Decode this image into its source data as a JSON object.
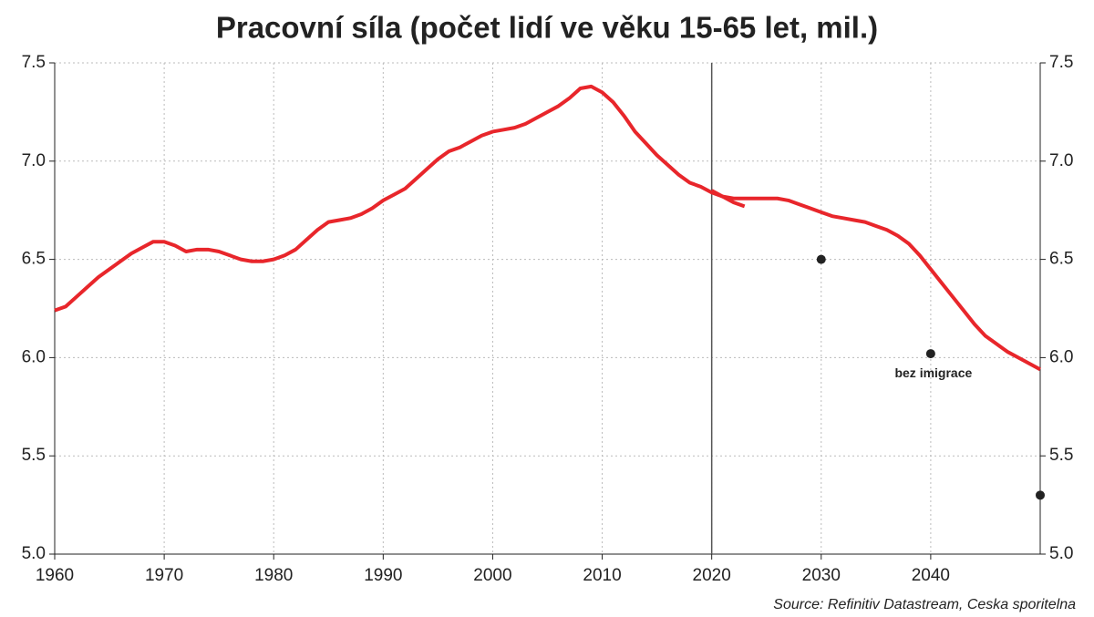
{
  "chart_data": {
    "type": "line",
    "title": "Pracovní síla (počet lidí ve věku 15-65 let, mil.)",
    "source": "Source: Refinitiv Datastream, Ceska sporitelna",
    "xlim": [
      1960,
      2050
    ],
    "xticks": [
      1960,
      1970,
      1980,
      1990,
      2000,
      2010,
      2020,
      2030,
      2040
    ],
    "ylim": [
      5,
      7.5
    ],
    "yticks": [
      {
        "value": 5,
        "label": "5.0"
      },
      {
        "value": 5.5,
        "label": "5.5"
      },
      {
        "value": 6,
        "label": "6.0"
      },
      {
        "value": 6.5,
        "label": "6.5"
      },
      {
        "value": 7,
        "label": "7.0"
      },
      {
        "value": 7.5,
        "label": "7.5"
      }
    ],
    "y2lim": [
      5,
      7.5
    ],
    "y2ticks": [
      {
        "value": 5,
        "label": "5.0"
      },
      {
        "value": 5.5,
        "label": "5.5"
      },
      {
        "value": 6,
        "label": "6.0"
      },
      {
        "value": 6.5,
        "label": "6.5"
      },
      {
        "value": 7,
        "label": "7.0"
      },
      {
        "value": 7.5,
        "label": "7.5"
      }
    ],
    "grid": true,
    "vline": 2020,
    "series": [
      {
        "color": "#e8262b",
        "x": [
          1960,
          1961,
          1962,
          1963,
          1964,
          1965,
          1966,
          1967,
          1968,
          1969,
          1970,
          1971,
          1972,
          1973,
          1974,
          1975,
          1976,
          1977,
          1978,
          1979,
          1980,
          1981,
          1982,
          1983,
          1984,
          1985,
          1986,
          1987,
          1988,
          1989,
          1990,
          1991,
          1992,
          1993,
          1994,
          1995,
          1996,
          1997,
          1998,
          1999,
          2000,
          2001,
          2002,
          2003,
          2004,
          2005,
          2006,
          2007,
          2008,
          2009,
          2010,
          2011,
          2012,
          2013,
          2014,
          2015,
          2016,
          2017,
          2018,
          2019,
          2020,
          2021,
          2022,
          2023
        ],
        "values": [
          6.24,
          6.26,
          6.31,
          6.36,
          6.41,
          6.45,
          6.49,
          6.53,
          6.56,
          6.59,
          6.59,
          6.57,
          6.54,
          6.55,
          6.55,
          6.54,
          6.52,
          6.5,
          6.49,
          6.49,
          6.5,
          6.52,
          6.55,
          6.6,
          6.65,
          6.69,
          6.7,
          6.71,
          6.73,
          6.76,
          6.8,
          6.83,
          6.86,
          6.91,
          6.96,
          7.01,
          7.05,
          7.07,
          7.1,
          7.13,
          7.15,
          7.16,
          7.17,
          7.19,
          7.22,
          7.25,
          7.28,
          7.32,
          7.37,
          7.38,
          7.35,
          7.3,
          7.23,
          7.15,
          7.09,
          7.03,
          6.98,
          6.93,
          6.89,
          6.87,
          6.84,
          6.82,
          6.79,
          6.77
        ]
      },
      {
        "color": "#e8262b",
        "x": [
          2020,
          2021,
          2022,
          2023,
          2024,
          2025,
          2026,
          2027,
          2028,
          2029,
          2030,
          2031,
          2032,
          2033,
          2034,
          2035,
          2036,
          2037,
          2038,
          2039,
          2040,
          2041,
          2042,
          2043,
          2044,
          2045,
          2046,
          2047,
          2048,
          2049,
          2050
        ],
        "values": [
          6.85,
          6.82,
          6.81,
          6.81,
          6.81,
          6.81,
          6.81,
          6.8,
          6.78,
          6.76,
          6.74,
          6.72,
          6.71,
          6.7,
          6.69,
          6.67,
          6.65,
          6.62,
          6.58,
          6.52,
          6.45,
          6.38,
          6.31,
          6.24,
          6.17,
          6.11,
          6.07,
          6.03,
          6,
          5.97,
          5.94
        ]
      }
    ],
    "points": {
      "color": "#222222",
      "x": [
        2030,
        2040,
        2050
      ],
      "values": [
        6.5,
        6.02,
        5.3
      ]
    },
    "annotation": "bez imigrace"
  }
}
